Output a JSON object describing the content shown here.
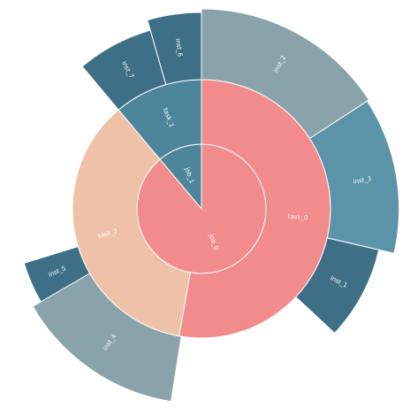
{
  "chart_data": {
    "type": "sunburst",
    "colors": {
      "job_0": "#f28b8c",
      "job_1": "#4d859b",
      "task_0": "#f28b8c",
      "task_1": "#4d859b",
      "task_2": "#f0c1a9",
      "inst_0": "#8aa3ab",
      "inst_1": "#3d7087",
      "inst_2": "#8aa3ab",
      "inst_3": "#5b93a8",
      "inst_4": "#8aa3ab",
      "inst_5": "#3d7087",
      "inst_6": "#3d7087",
      "inst_7": "#3d7087"
    },
    "rings": [
      {
        "level": "job",
        "segments": [
          {
            "name": "job_0",
            "label": "job_0",
            "value": 320
          },
          {
            "name": "job_1",
            "label": "job_1",
            "value": 40
          }
        ]
      },
      {
        "level": "task",
        "segments": [
          {
            "name": "task_0",
            "label": "task_0",
            "value": 190
          },
          {
            "name": "task_2",
            "label": "task_2",
            "value": 130
          },
          {
            "name": "task_1",
            "label": "task_1",
            "value": 40
          }
        ]
      },
      {
        "level": "inst",
        "segments": [
          {
            "name": "inst_2",
            "label": "inst_2",
            "value": 57,
            "depth": 1.0
          },
          {
            "name": "inst_3",
            "label": "inst_3",
            "value": 46,
            "depth": 0.97
          },
          {
            "name": "inst_1",
            "label": "inst_1",
            "value": 30,
            "depth": 0.75
          },
          {
            "name": "gap_a",
            "label": "",
            "value": 56,
            "depth": 0
          },
          {
            "name": "inst_4",
            "label": "inst_4",
            "value": 51,
            "depth": 0.93
          },
          {
            "name": "inst_5",
            "label": "inst_5",
            "value": 13,
            "depth": 0.8
          },
          {
            "name": "gap_b",
            "label": "",
            "value": 67,
            "depth": 0
          },
          {
            "name": "inst_7",
            "label": "inst_7",
            "value": 24,
            "depth": 0.8
          },
          {
            "name": "inst_6",
            "label": "inst_6",
            "value": 16,
            "depth": 0.95
          }
        ]
      }
    ]
  }
}
